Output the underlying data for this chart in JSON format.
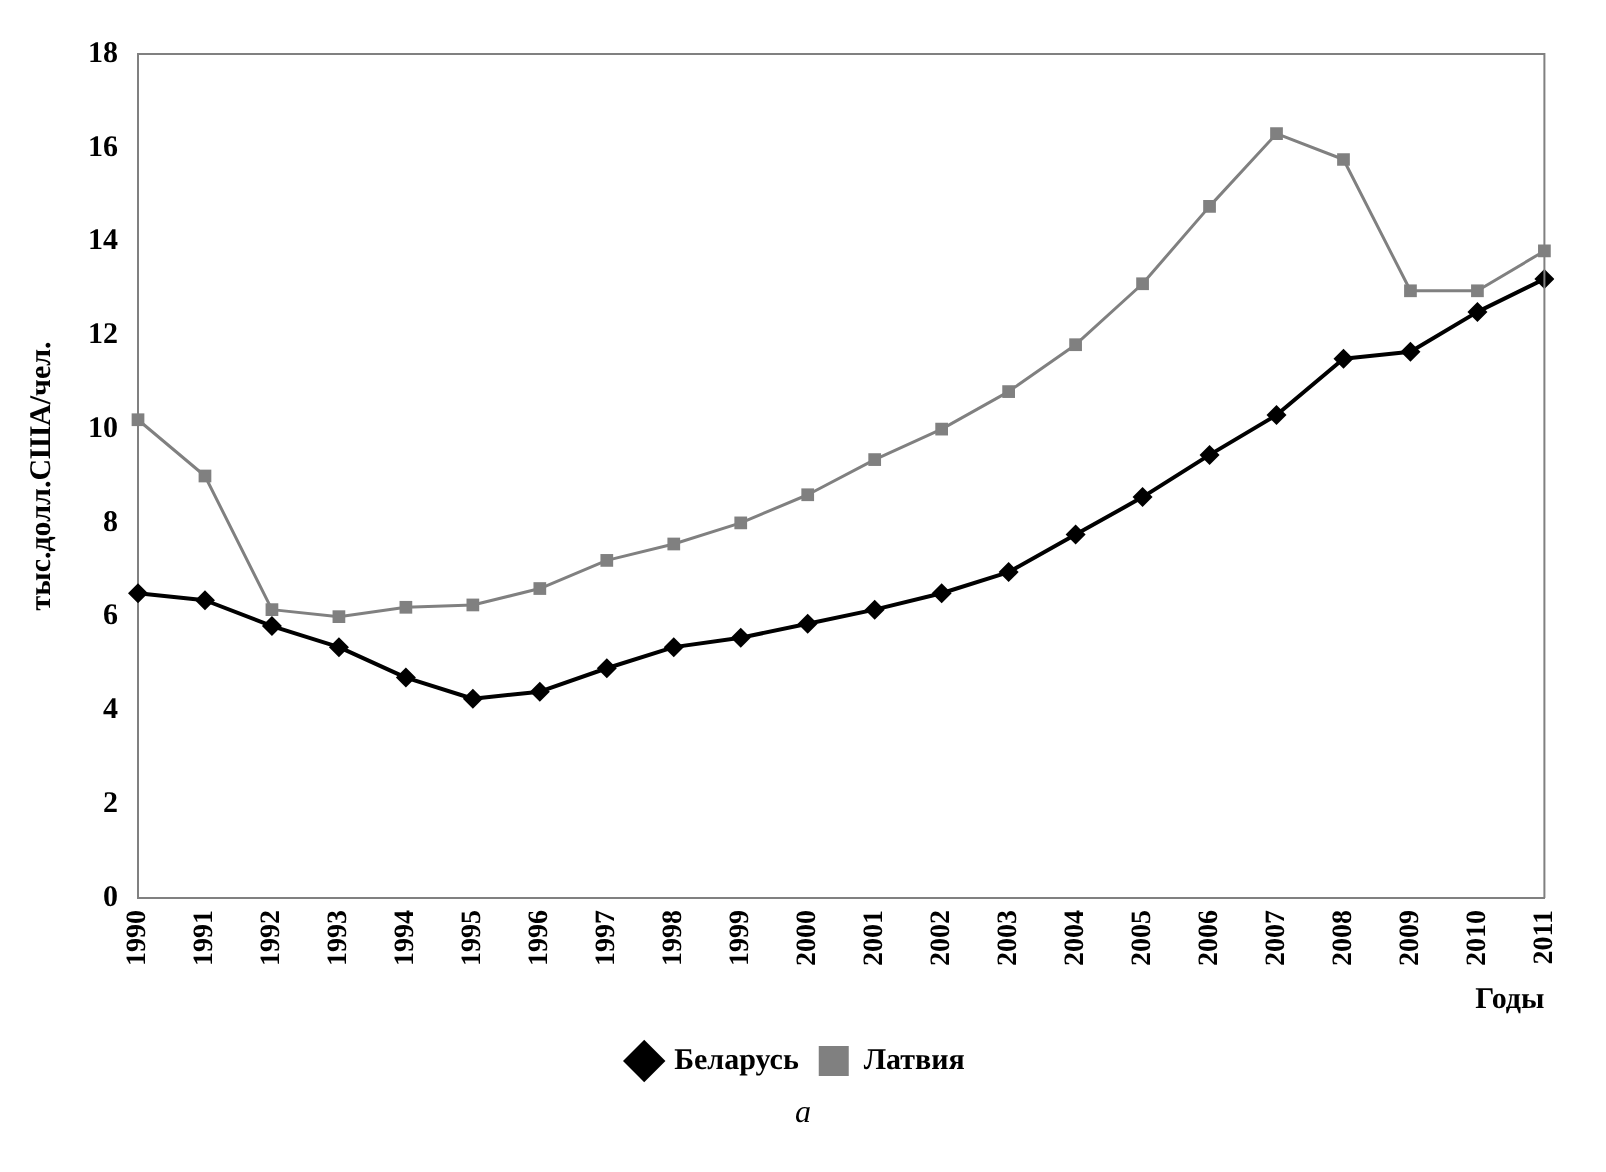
{
  "chart_data": {
    "type": "line",
    "xlabel": "Годы",
    "ylabel": "тыс.долл.США/чел.",
    "categories": [
      "1990",
      "1991",
      "1992",
      "1993",
      "1994",
      "1995",
      "1996",
      "1997",
      "1998",
      "1999",
      "2000",
      "2001",
      "2002",
      "2003",
      "2004",
      "2005",
      "2006",
      "2007",
      "2008",
      "2009",
      "2010",
      "2011"
    ],
    "series": [
      {
        "name": "Беларусь",
        "color": "#000000",
        "marker": "diamond",
        "values": [
          6.5,
          6.35,
          5.8,
          5.35,
          4.7,
          4.25,
          4.4,
          4.9,
          5.35,
          5.55,
          5.85,
          6.15,
          6.5,
          6.95,
          7.75,
          8.55,
          9.45,
          10.3,
          11.5,
          11.65,
          12.5,
          13.2
        ]
      },
      {
        "name": "Латвия",
        "color": "#808080",
        "marker": "square",
        "values": [
          10.2,
          9.0,
          6.15,
          6.0,
          6.2,
          6.25,
          6.6,
          7.2,
          7.55,
          8.0,
          8.6,
          9.35,
          10.0,
          10.8,
          11.8,
          13.1,
          14.75,
          16.3,
          15.75,
          12.95,
          12.95,
          13.8
        ]
      }
    ],
    "ylim": [
      0,
      18
    ],
    "yticks": [
      0,
      2,
      4,
      6,
      8,
      10,
      12,
      14,
      16,
      18
    ],
    "grid": false,
    "legend": "bottom",
    "line_style": "solid",
    "annotations": [
      "а"
    ]
  }
}
